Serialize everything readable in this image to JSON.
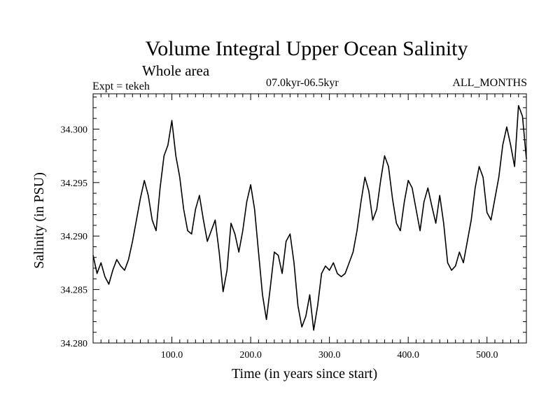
{
  "chart_data": {
    "type": "line",
    "title": "Volume Integral Upper Ocean Salinity",
    "subtitle": "Whole area",
    "experiment": "Expt = tekeh",
    "period": "07.0kyr-06.5kyr",
    "months": "ALL_MONTHS",
    "xlabel": "Time (in years since start)",
    "ylabel": "Salinity (in PSU)",
    "xlim": [
      0,
      550
    ],
    "ylim": [
      34.28,
      34.3033
    ],
    "grid": false,
    "xticks": [
      100,
      200,
      300,
      400,
      500
    ],
    "xtick_labels": [
      "100.0",
      "200.0",
      "300.0",
      "400.0",
      "500.0"
    ],
    "yticks": [
      34.28,
      34.285,
      34.29,
      34.295,
      34.3
    ],
    "ytick_labels": [
      "34.280",
      "34.285",
      "34.290",
      "34.295",
      "34.300"
    ],
    "series": [
      {
        "name": "Salinity",
        "color": "#000000",
        "x": [
          0,
          5,
          10,
          15,
          20,
          25,
          30,
          35,
          40,
          45,
          50,
          55,
          60,
          65,
          70,
          75,
          80,
          85,
          90,
          95,
          100,
          105,
          110,
          115,
          120,
          125,
          130,
          135,
          140,
          145,
          150,
          155,
          160,
          165,
          170,
          175,
          180,
          185,
          190,
          195,
          200,
          205,
          210,
          215,
          220,
          225,
          230,
          235,
          240,
          245,
          250,
          255,
          260,
          265,
          270,
          275,
          280,
          285,
          290,
          295,
          300,
          305,
          310,
          315,
          320,
          325,
          330,
          335,
          340,
          345,
          350,
          355,
          360,
          365,
          370,
          375,
          380,
          385,
          390,
          395,
          400,
          405,
          410,
          415,
          420,
          425,
          430,
          435,
          440,
          445,
          450,
          455,
          460,
          465,
          470,
          475,
          480,
          485,
          490,
          495,
          500,
          505,
          510,
          515,
          520,
          525,
          530,
          535,
          540,
          545,
          550
        ],
        "values": [
          34.2882,
          34.2865,
          34.2875,
          34.2862,
          34.2855,
          34.2868,
          34.2878,
          34.2872,
          34.2868,
          34.2878,
          34.2895,
          34.2915,
          34.2935,
          34.2952,
          34.2938,
          34.2915,
          34.2905,
          34.2945,
          34.2975,
          34.2985,
          34.3008,
          34.2975,
          34.2955,
          34.2925,
          34.2905,
          34.2902,
          34.2925,
          34.2938,
          34.2915,
          34.2895,
          34.2905,
          34.2915,
          34.2885,
          34.2848,
          34.2868,
          34.2912,
          34.2902,
          34.2885,
          34.2905,
          34.2932,
          34.2948,
          34.2925,
          34.2885,
          34.2845,
          34.2822,
          34.2852,
          34.2885,
          34.2882,
          34.2865,
          34.2895,
          34.2902,
          34.2875,
          34.2835,
          34.2815,
          34.2825,
          34.2845,
          34.2812,
          34.2835,
          34.2865,
          34.2872,
          34.2868,
          34.2875,
          34.2865,
          34.2862,
          34.2865,
          34.2875,
          34.2885,
          34.2905,
          34.2932,
          34.2955,
          34.2942,
          34.2915,
          34.2925,
          34.2952,
          34.2975,
          34.2965,
          34.2935,
          34.2912,
          34.2905,
          34.2932,
          34.2952,
          34.2945,
          34.2925,
          34.2905,
          34.2932,
          34.2945,
          34.2928,
          34.2912,
          34.2938,
          34.2912,
          34.2875,
          34.2868,
          34.2872,
          34.2885,
          34.2875,
          34.2895,
          34.2915,
          34.2945,
          34.2965,
          34.2955,
          34.2922,
          34.2915,
          34.2935,
          34.2955,
          34.2985,
          34.3002,
          34.2985,
          34.2965,
          34.3022,
          34.3012,
          34.2972
        ]
      }
    ]
  }
}
